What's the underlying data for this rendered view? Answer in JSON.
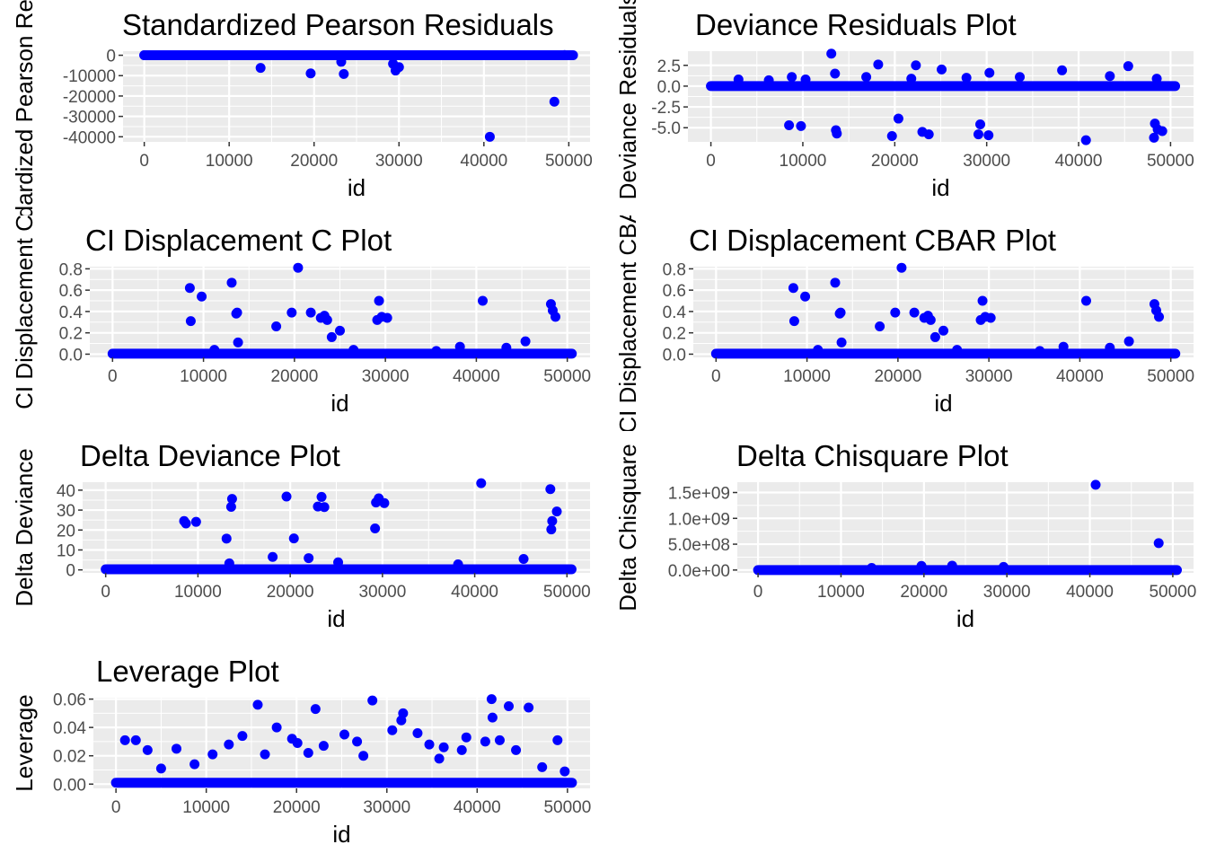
{
  "point_color": "#0000ff",
  "panel_background": "#ebebeb",
  "gridline_color": "#ffffff",
  "chart_data": [
    {
      "type": "scatter",
      "title": "Standardized Pearson Residuals",
      "xlabel": "id",
      "ylabel": "Standardized Pearson Residuals",
      "xlim": [
        -2500,
        52500
      ],
      "ylim": [
        -42500,
        2000
      ],
      "xticks": [
        0,
        10000,
        20000,
        30000,
        40000,
        50000
      ],
      "xtick_labels": [
        "0",
        "10000",
        "20000",
        "30000",
        "40000",
        "50000"
      ],
      "yticks": [
        0,
        -10000,
        -20000,
        -30000,
        -40000
      ],
      "ytick_labels": [
        "0",
        "-10000",
        "-20000",
        "-30000",
        "-40000"
      ],
      "baseline": {
        "from": 0,
        "to": 50500,
        "value": 0
      },
      "points": [
        [
          0,
          0
        ],
        [
          13700,
          -6200
        ],
        [
          19600,
          -8900
        ],
        [
          23200,
          -3200
        ],
        [
          23500,
          -9200
        ],
        [
          29300,
          -4200
        ],
        [
          29600,
          -7500
        ],
        [
          30000,
          -5800
        ],
        [
          48300,
          -22800
        ],
        [
          40700,
          -40000
        ],
        [
          49500,
          100
        ]
      ]
    },
    {
      "type": "scatter",
      "title": "Deviance Residuals Plot",
      "xlabel": "id",
      "ylabel": "Deviance Residuals",
      "xlim": [
        -2500,
        52500
      ],
      "ylim": [
        -6.7,
        4.2
      ],
      "xticks": [
        0,
        10000,
        20000,
        30000,
        40000,
        50000
      ],
      "xtick_labels": [
        "0",
        "10000",
        "20000",
        "30000",
        "40000",
        "50000"
      ],
      "yticks": [
        2.5,
        0,
        -2.5,
        -5
      ],
      "ytick_labels": [
        "2.5",
        "0.0",
        "-2.5",
        "-5.0"
      ],
      "baseline": {
        "from": 0,
        "to": 50500,
        "value": 0
      },
      "points": [
        [
          13100,
          3.9
        ],
        [
          18200,
          2.6
        ],
        [
          22300,
          2.5
        ],
        [
          45400,
          2.4
        ],
        [
          25100,
          2.0
        ],
        [
          38200,
          1.9
        ],
        [
          13500,
          1.5
        ],
        [
          30300,
          1.6
        ],
        [
          8800,
          1.1
        ],
        [
          33600,
          1.1
        ],
        [
          43400,
          1.2
        ],
        [
          3000,
          0.8
        ],
        [
          16900,
          1.1
        ],
        [
          21800,
          0.9
        ],
        [
          27800,
          1.0
        ],
        [
          48500,
          0.9
        ],
        [
          6300,
          0.7
        ],
        [
          10300,
          0.8
        ],
        [
          8500,
          -4.7
        ],
        [
          9800,
          -4.8
        ],
        [
          13700,
          -5.7
        ],
        [
          13600,
          -5.3
        ],
        [
          20400,
          -3.9
        ],
        [
          19700,
          -6.0
        ],
        [
          23000,
          -5.5
        ],
        [
          23700,
          -5.8
        ],
        [
          29300,
          -4.6
        ],
        [
          29100,
          -5.8
        ],
        [
          30200,
          -5.9
        ],
        [
          40800,
          -6.5
        ],
        [
          48300,
          -4.5
        ],
        [
          48600,
          -5.2
        ],
        [
          48200,
          -6.2
        ],
        [
          49100,
          -5.4
        ]
      ]
    },
    {
      "type": "scatter",
      "title": "CI Displacement C Plot",
      "xlabel": "id",
      "ylabel": "CI Displacement C",
      "xlim": [
        -2500,
        52500
      ],
      "ylim": [
        -0.03,
        0.82
      ],
      "xticks": [
        0,
        10000,
        20000,
        30000,
        40000,
        50000
      ],
      "xtick_labels": [
        "0",
        "10000",
        "20000",
        "30000",
        "40000",
        "50000"
      ],
      "yticks": [
        0,
        0.2,
        0.4,
        0.6,
        0.8
      ],
      "ytick_labels": [
        "0.0",
        "0.2",
        "0.4",
        "0.6",
        "0.8"
      ],
      "baseline": {
        "from": 0,
        "to": 50500,
        "value": 0.005
      },
      "points": [
        [
          8500,
          0.62
        ],
        [
          8600,
          0.31
        ],
        [
          9800,
          0.54
        ],
        [
          13100,
          0.67
        ],
        [
          13600,
          0.38
        ],
        [
          13700,
          0.39
        ],
        [
          13800,
          0.11
        ],
        [
          18000,
          0.26
        ],
        [
          19700,
          0.39
        ],
        [
          20400,
          0.81
        ],
        [
          21800,
          0.39
        ],
        [
          22900,
          0.34
        ],
        [
          23300,
          0.36
        ],
        [
          23600,
          0.32
        ],
        [
          24100,
          0.16
        ],
        [
          25000,
          0.22
        ],
        [
          29300,
          0.5
        ],
        [
          29100,
          0.32
        ],
        [
          29600,
          0.35
        ],
        [
          30200,
          0.34
        ],
        [
          40700,
          0.5
        ],
        [
          48200,
          0.47
        ],
        [
          48400,
          0.41
        ],
        [
          48700,
          0.35
        ],
        [
          45400,
          0.12
        ],
        [
          38200,
          0.07
        ],
        [
          43300,
          0.06
        ],
        [
          11200,
          0.04
        ],
        [
          26500,
          0.04
        ],
        [
          35600,
          0.03
        ]
      ]
    },
    {
      "type": "scatter",
      "title": "CI Displacement CBAR Plot",
      "xlabel": "id",
      "ylabel": "CI Displacement CBAR",
      "xlim": [
        -2500,
        52500
      ],
      "ylim": [
        -0.03,
        0.82
      ],
      "xticks": [
        0,
        10000,
        20000,
        30000,
        40000,
        50000
      ],
      "xtick_labels": [
        "0",
        "10000",
        "20000",
        "30000",
        "40000",
        "50000"
      ],
      "yticks": [
        0,
        0.2,
        0.4,
        0.6,
        0.8
      ],
      "ytick_labels": [
        "0.0",
        "0.2",
        "0.4",
        "0.6",
        "0.8"
      ],
      "baseline": {
        "from": 0,
        "to": 50500,
        "value": 0.005
      },
      "points": [
        [
          8500,
          0.62
        ],
        [
          8600,
          0.31
        ],
        [
          9800,
          0.54
        ],
        [
          13100,
          0.67
        ],
        [
          13600,
          0.38
        ],
        [
          13700,
          0.39
        ],
        [
          13800,
          0.11
        ],
        [
          18000,
          0.26
        ],
        [
          19700,
          0.39
        ],
        [
          20400,
          0.81
        ],
        [
          21800,
          0.39
        ],
        [
          22900,
          0.34
        ],
        [
          23300,
          0.36
        ],
        [
          23600,
          0.32
        ],
        [
          24100,
          0.16
        ],
        [
          25000,
          0.22
        ],
        [
          29300,
          0.5
        ],
        [
          29100,
          0.32
        ],
        [
          29600,
          0.35
        ],
        [
          30200,
          0.34
        ],
        [
          40700,
          0.5
        ],
        [
          48200,
          0.47
        ],
        [
          48400,
          0.41
        ],
        [
          48700,
          0.35
        ],
        [
          45400,
          0.12
        ],
        [
          38200,
          0.07
        ],
        [
          43300,
          0.06
        ],
        [
          11200,
          0.04
        ],
        [
          26500,
          0.04
        ],
        [
          35600,
          0.03
        ]
      ]
    },
    {
      "type": "scatter",
      "title": "Delta Deviance Plot",
      "xlabel": "id",
      "ylabel": "Delta Deviance",
      "xlim": [
        -2500,
        52500
      ],
      "ylim": [
        -1.5,
        44
      ],
      "xticks": [
        0,
        10000,
        20000,
        30000,
        40000,
        50000
      ],
      "xtick_labels": [
        "0",
        "10000",
        "20000",
        "30000",
        "40000",
        "50000"
      ],
      "yticks": [
        0,
        10,
        20,
        30,
        40
      ],
      "ytick_labels": [
        "0",
        "10",
        "20",
        "30",
        "40"
      ],
      "baseline": {
        "from": 0,
        "to": 50500,
        "value": 0.3
      },
      "points": [
        [
          8500,
          24.5
        ],
        [
          8700,
          23.3
        ],
        [
          9800,
          24.1
        ],
        [
          13100,
          15.7
        ],
        [
          13700,
          35.6
        ],
        [
          13600,
          31.6
        ],
        [
          19600,
          36.8
        ],
        [
          20400,
          15.8
        ],
        [
          23000,
          31.8
        ],
        [
          23400,
          36.6
        ],
        [
          23700,
          31.5
        ],
        [
          29300,
          33.8
        ],
        [
          29600,
          35.9
        ],
        [
          30200,
          33.5
        ],
        [
          29200,
          20.8
        ],
        [
          40700,
          43.5
        ],
        [
          48200,
          40.5
        ],
        [
          48400,
          24.5
        ],
        [
          48300,
          20.3
        ],
        [
          48900,
          29.3
        ],
        [
          18100,
          6.5
        ],
        [
          22000,
          5.9
        ],
        [
          45300,
          5.5
        ],
        [
          13400,
          3.3
        ],
        [
          25200,
          3.8
        ],
        [
          38200,
          2.8
        ]
      ]
    },
    {
      "type": "scatter",
      "title": "Delta Chisquare Plot",
      "xlabel": "id",
      "ylabel": "Delta Chisquare",
      "xlim": [
        -2500,
        52500
      ],
      "ylim": [
        -55000000,
        1700000000
      ],
      "xticks": [
        0,
        10000,
        20000,
        30000,
        40000,
        50000
      ],
      "xtick_labels": [
        "0",
        "10000",
        "20000",
        "30000",
        "40000",
        "50000"
      ],
      "yticks": [
        0,
        500000000,
        1000000000,
        1500000000
      ],
      "ytick_labels": [
        "0.0e+00",
        "5.0e+08",
        "1.0e+09",
        "1.5e+09"
      ],
      "baseline": {
        "from": 0,
        "to": 50500,
        "value": 0
      },
      "points": [
        [
          40700,
          1650000000
        ],
        [
          48300,
          520000000
        ],
        [
          19700,
          80000000
        ],
        [
          23400,
          85000000
        ],
        [
          29600,
          60000000
        ],
        [
          13700,
          40000000
        ]
      ]
    },
    {
      "type": "scatter",
      "title": "Leverage Plot",
      "xlabel": "id",
      "ylabel": "Leverage",
      "xlim": [
        -2500,
        52500
      ],
      "ylim": [
        -0.003,
        0.061
      ],
      "xticks": [
        0,
        10000,
        20000,
        30000,
        40000,
        50000
      ],
      "xtick_labels": [
        "0",
        "10000",
        "20000",
        "30000",
        "40000",
        "50000"
      ],
      "yticks": [
        0,
        0.02,
        0.04,
        0.06
      ],
      "ytick_labels": [
        "0.00",
        "0.02",
        "0.04",
        "0.06"
      ],
      "baseline": {
        "from": 0,
        "to": 50500,
        "value": 0.001
      },
      "points": [
        [
          28400,
          0.059
        ],
        [
          41600,
          0.06
        ],
        [
          15700,
          0.056
        ],
        [
          22100,
          0.053
        ],
        [
          43500,
          0.055
        ],
        [
          45700,
          0.054
        ],
        [
          31800,
          0.05
        ],
        [
          41700,
          0.047
        ],
        [
          31600,
          0.045
        ],
        [
          17800,
          0.04
        ],
        [
          19500,
          0.032
        ],
        [
          38800,
          0.033
        ],
        [
          33400,
          0.036
        ],
        [
          1000,
          0.031
        ],
        [
          2200,
          0.031
        ],
        [
          48900,
          0.031
        ],
        [
          14000,
          0.034
        ],
        [
          25300,
          0.035
        ],
        [
          30600,
          0.038
        ],
        [
          36300,
          0.026
        ],
        [
          40900,
          0.03
        ],
        [
          6700,
          0.025
        ],
        [
          3500,
          0.024
        ],
        [
          10700,
          0.021
        ],
        [
          12500,
          0.028
        ],
        [
          20100,
          0.029
        ],
        [
          23000,
          0.027
        ],
        [
          26700,
          0.03
        ],
        [
          34700,
          0.028
        ],
        [
          38300,
          0.024
        ],
        [
          42500,
          0.031
        ],
        [
          44300,
          0.024
        ],
        [
          5000,
          0.011
        ],
        [
          8700,
          0.014
        ],
        [
          47200,
          0.012
        ],
        [
          49700,
          0.009
        ],
        [
          16500,
          0.021
        ],
        [
          21300,
          0.022
        ],
        [
          27400,
          0.02
        ],
        [
          35800,
          0.018
        ]
      ]
    }
  ]
}
